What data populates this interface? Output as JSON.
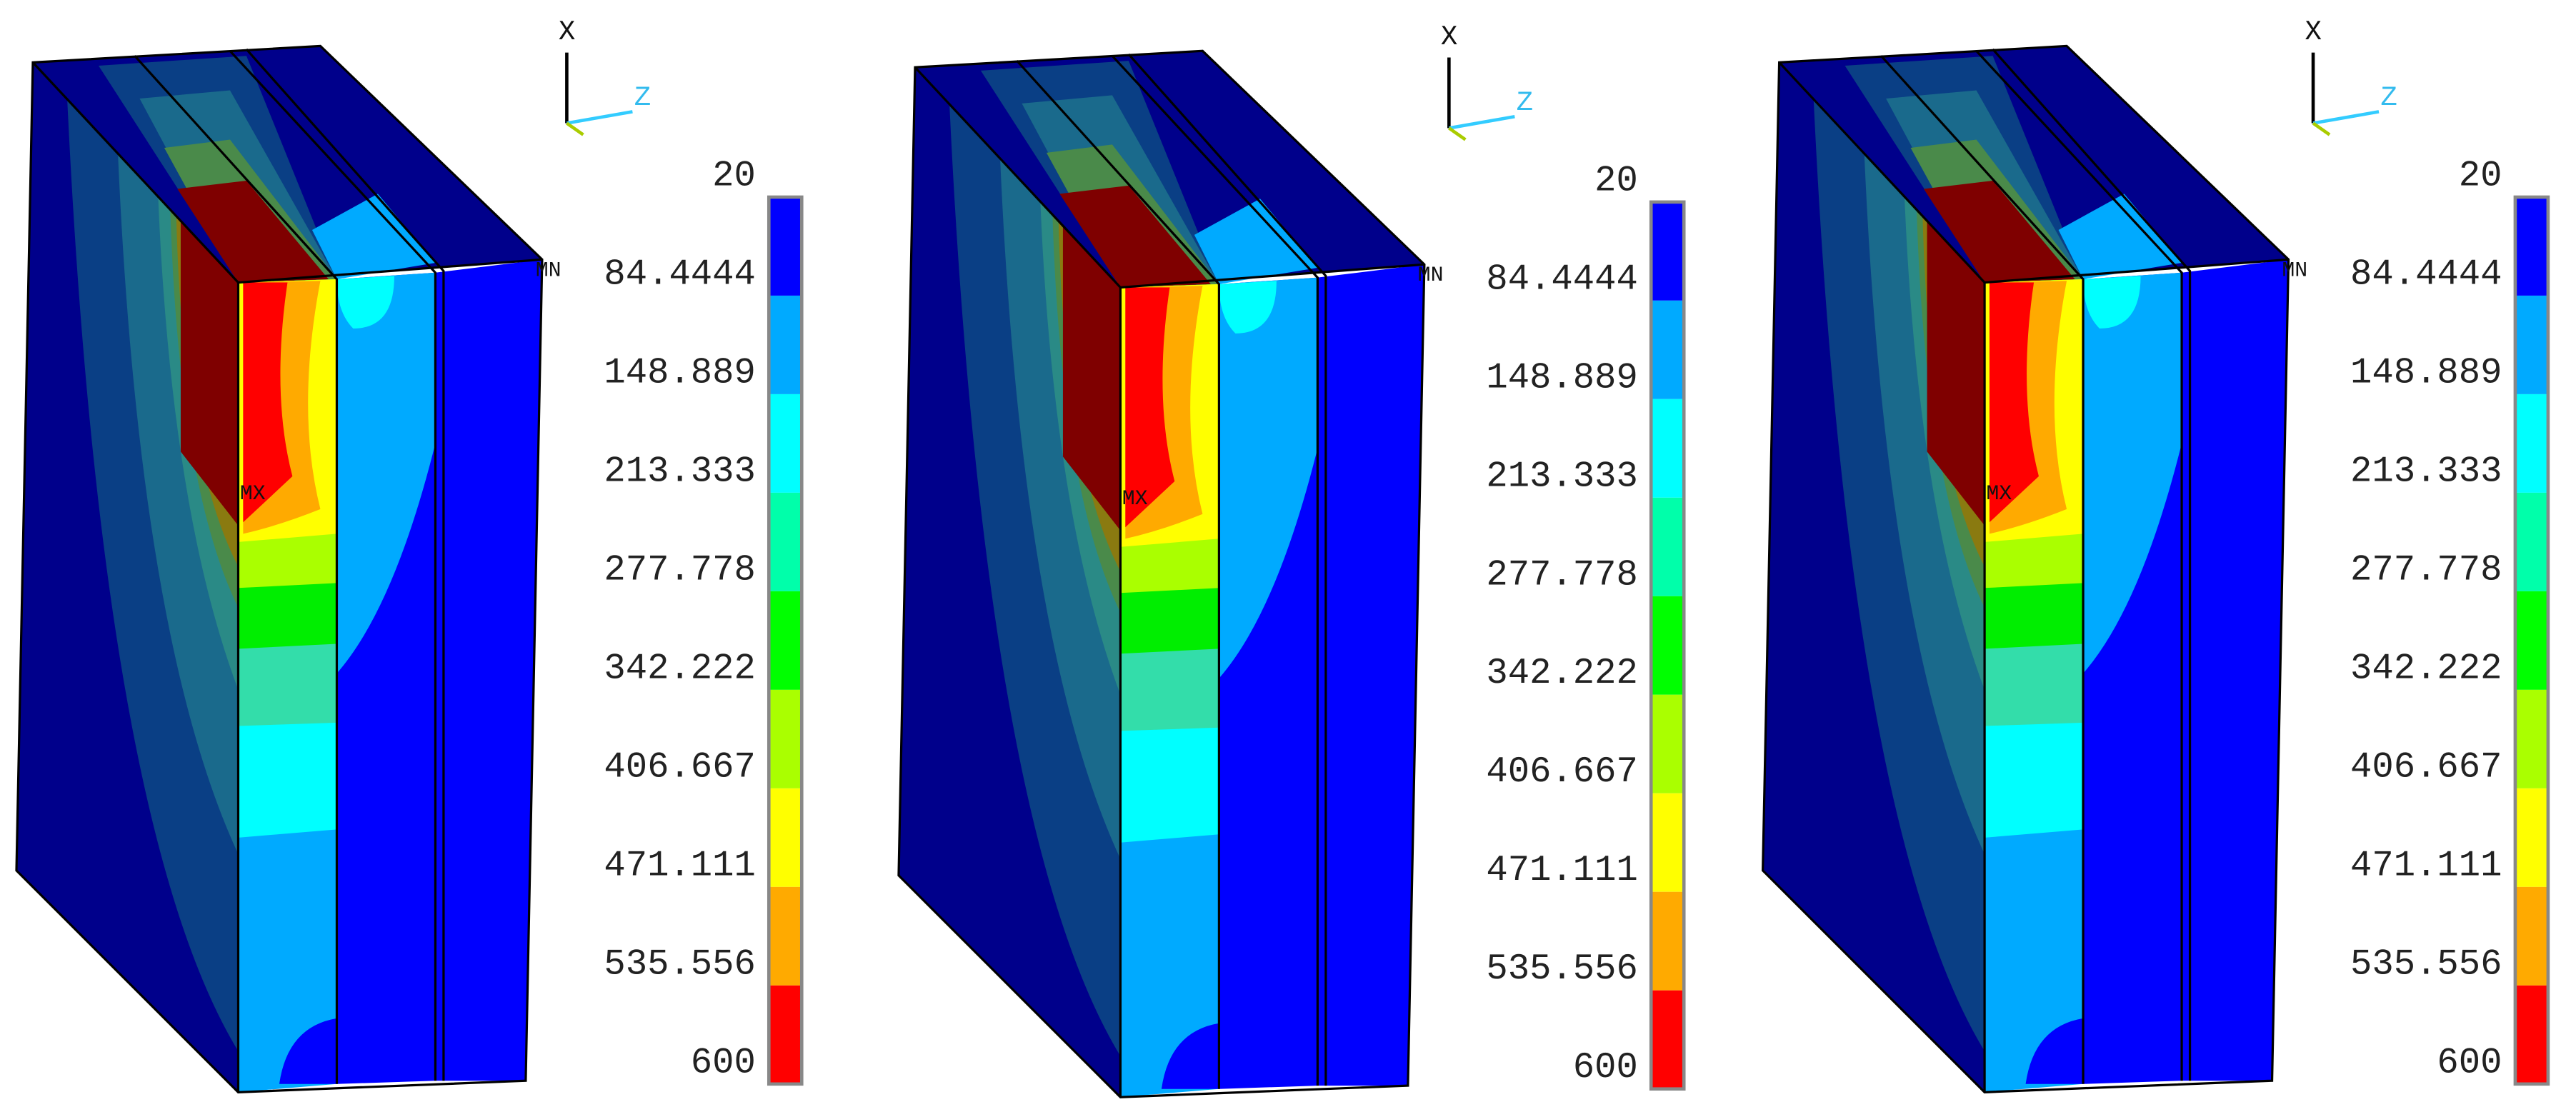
{
  "panels": [
    {
      "triad": {
        "x": "X",
        "z": "Z"
      },
      "min_label": "MN",
      "max_label": "MX",
      "legend": [
        "20",
        "84.4444",
        "148.889",
        "213.333",
        "277.778",
        "342.222",
        "406.667",
        "471.111",
        "535.556",
        "600"
      ]
    },
    {
      "triad": {
        "x": "X",
        "z": "Z"
      },
      "min_label": "MN",
      "max_label": "MX",
      "legend": [
        "20",
        "84.4444",
        "148.889",
        "213.333",
        "277.778",
        "342.222",
        "406.667",
        "471.111",
        "535.556",
        "600"
      ]
    },
    {
      "triad": {
        "x": "X",
        "z": "Z"
      },
      "min_label": "MN",
      "max_label": "MX",
      "legend": [
        "20",
        "84.4444",
        "148.889",
        "213.333",
        "277.778",
        "342.222",
        "406.667",
        "471.111",
        "535.556",
        "600"
      ]
    }
  ]
}
